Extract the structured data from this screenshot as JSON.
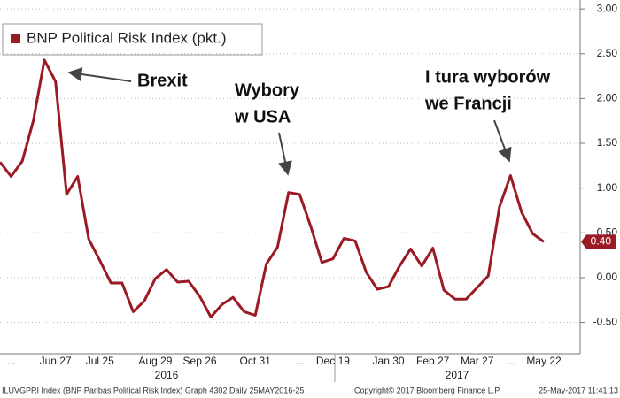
{
  "chart_data": {
    "type": "line",
    "legend": "BNP Political Risk Index (pkt.)",
    "color": "#9b1b24",
    "grid": true,
    "categories": [
      null,
      "...",
      null,
      null,
      null,
      "Jun 27",
      null,
      null,
      null,
      "Jul 25",
      null,
      null,
      null,
      null,
      "Aug 29",
      null,
      null,
      null,
      "Sep 26",
      null,
      null,
      null,
      null,
      "Oct 31",
      null,
      null,
      null,
      "...",
      null,
      null,
      "Dec 19",
      null,
      null,
      null,
      null,
      "Jan 30",
      null,
      null,
      null,
      "Feb 27",
      null,
      null,
      null,
      "Mar 27",
      null,
      null,
      "...",
      null,
      null,
      "May 22"
    ],
    "values": [
      1.29,
      1.13,
      1.3,
      1.75,
      2.43,
      2.19,
      0.93,
      1.13,
      0.43,
      0.19,
      -0.06,
      -0.06,
      -0.38,
      -0.26,
      -0.01,
      0.09,
      -0.05,
      -0.04,
      -0.21,
      -0.44,
      -0.3,
      -0.22,
      -0.38,
      -0.42,
      0.15,
      0.34,
      0.95,
      0.93,
      0.57,
      0.17,
      0.21,
      0.44,
      0.41,
      0.06,
      -0.13,
      -0.1,
      0.13,
      0.32,
      0.13,
      0.33,
      -0.14,
      -0.24,
      -0.24,
      -0.11,
      0.02,
      0.79,
      1.14,
      0.73,
      0.49,
      0.4
    ],
    "value_labels": [
      null,
      null,
      null,
      null,
      null,
      null,
      null,
      null,
      null,
      null,
      null,
      null,
      null,
      null,
      null,
      null,
      null,
      null,
      null,
      null,
      null,
      null,
      null,
      null,
      null,
      null,
      null,
      null,
      null,
      null,
      null,
      null,
      null,
      null,
      null,
      null,
      null,
      null,
      null,
      null,
      null,
      null,
      null,
      null,
      null,
      null,
      null,
      null,
      null,
      "0.40"
    ],
    "ylim": [
      -0.85,
      3.1
    ],
    "yticks": [
      {
        "value": -0.5,
        "label": "-0.50"
      },
      {
        "value": 0,
        "label": "0.00"
      },
      {
        "value": 0.5,
        "label": "0.50"
      },
      {
        "value": 1,
        "label": "1.00"
      },
      {
        "value": 1.5,
        "label": "1.50"
      },
      {
        "value": 2,
        "label": "2.00"
      },
      {
        "value": 2.5,
        "label": "2.50"
      },
      {
        "value": 3,
        "label": "3.00"
      }
    ],
    "year_labels": [
      "2016",
      "2017"
    ],
    "annotations": [
      [
        "Brexit"
      ],
      [
        "Wybory",
        "w USA"
      ],
      [
        "I tura wyborów",
        "we Francji"
      ]
    ],
    "footer": [
      "ILUVGPRI Index (BNP Paribas Political Risk Index) Graph 4302  Daily 25MAY2016-25",
      "Copyright© 2017 Bloomberg Finance L.P.",
      "25-May-2017 11:41:13"
    ]
  }
}
